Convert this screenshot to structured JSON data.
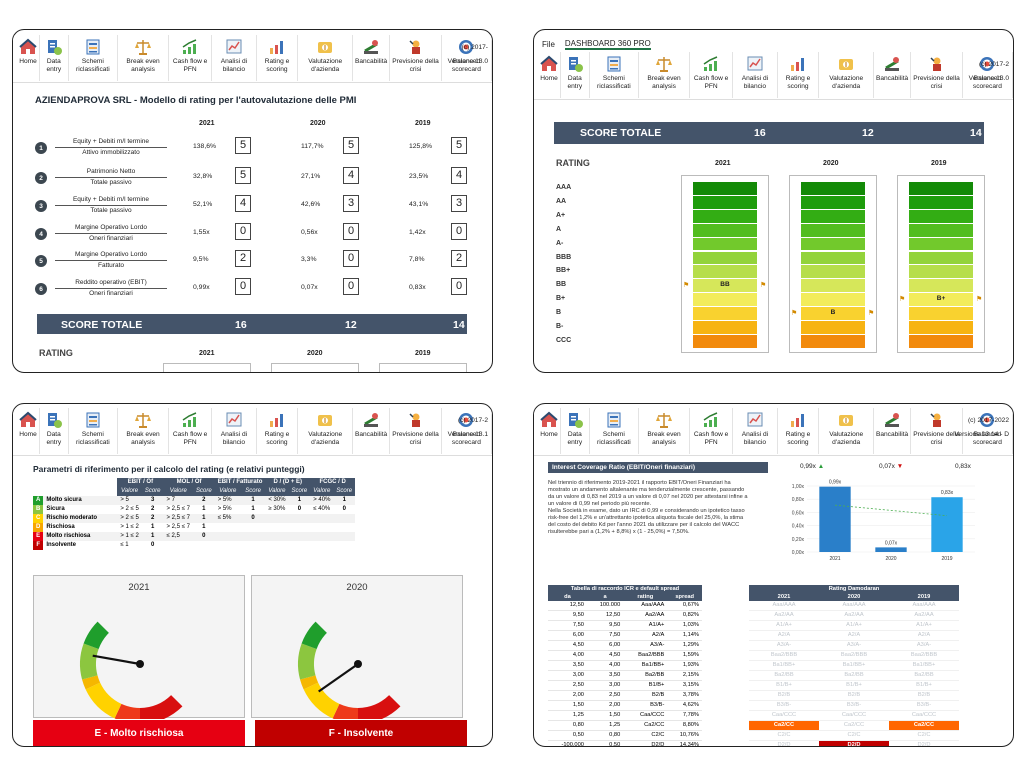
{
  "ribbon": {
    "items": [
      {
        "label": "Home",
        "icon": "home-icon"
      },
      {
        "label": "Data entry",
        "icon": "data-entry-icon"
      },
      {
        "label": "Schemi riclassificati",
        "icon": "sheet-icon"
      },
      {
        "label": "Break even analysis",
        "icon": "balance-icon"
      },
      {
        "label": "Cash flow e PFN",
        "icon": "growth-chart-icon"
      },
      {
        "label": "Analisi di bilancio",
        "icon": "analysis-icon"
      },
      {
        "label": "Rating e scoring",
        "icon": "bar-chart-icon"
      },
      {
        "label": "Valutazione d'azienda",
        "icon": "money-icon"
      },
      {
        "label": "Bancabilità",
        "icon": "bank-icon"
      },
      {
        "label": "Previsione della crisi",
        "icon": "crisis-icon"
      },
      {
        "label": "Balanced scorecard",
        "icon": "scorecard-icon"
      }
    ],
    "copyright_p1": "(c) 2017-",
    "version_p1": "Versione 13.0",
    "copyright_p2": "(c) 2017-2",
    "version_p2": "Versione 13.0",
    "copyright_p3": "(c) 2017-2",
    "version_p3": "Versione 13.1",
    "copyright_p4": "(c) 2017-2022",
    "version_p4": "Versione 13.14 - D"
  },
  "p2menu": {
    "file": "File",
    "tab": "DASHBOARD 360 PRO"
  },
  "p1": {
    "title": "AZIENDAPROVA SRL - Modello di rating per l'autovalutazione delle PMI",
    "years": [
      "2021",
      "2020",
      "2019"
    ],
    "rows": [
      {
        "n": "1",
        "num": "Equity + Debiti m/l termine",
        "den": "Attivo immobilizzato",
        "vals": [
          "138,6%",
          "117,7%",
          "125,8%"
        ],
        "scores": [
          "5",
          "5",
          "5"
        ]
      },
      {
        "n": "2",
        "num": "Patrimonio Netto",
        "den": "Totale passivo",
        "vals": [
          "32,8%",
          "27,1%",
          "23,5%"
        ],
        "scores": [
          "5",
          "4",
          "4"
        ]
      },
      {
        "n": "3",
        "num": "Equity + Debiti m/l termine",
        "den": "Totale passivo",
        "vals": [
          "52,1%",
          "42,6%",
          "43,1%"
        ],
        "scores": [
          "4",
          "3",
          "3"
        ]
      },
      {
        "n": "4",
        "num": "Margine Operativo Lordo",
        "den": "Oneri finanziari",
        "vals": [
          "1,55x",
          "0,56x",
          "1,42x"
        ],
        "scores": [
          "0",
          "0",
          "0"
        ]
      },
      {
        "n": "5",
        "num": "Margine Operativo Lordo",
        "den": "Fatturato",
        "vals": [
          "9,5%",
          "3,3%",
          "7,8%"
        ],
        "scores": [
          "2",
          "0",
          "2"
        ]
      },
      {
        "n": "6",
        "num": "Reddito operativo (EBIT)",
        "den": "Oneri finanziari",
        "vals": [
          "0,99x",
          "0,07x",
          "0,83x"
        ],
        "scores": [
          "0",
          "0",
          "0"
        ]
      }
    ],
    "score_label": "SCORE TOTALE",
    "scores_total": [
      "16",
      "12",
      "14"
    ],
    "rating_label": "RATING"
  },
  "p2": {
    "score_label": "SCORE TOTALE",
    "scores_total": [
      "16",
      "12",
      "14"
    ],
    "rating_label": "RATING",
    "years": [
      "2021",
      "2020",
      "2019"
    ],
    "scale": [
      "AAA",
      "AA",
      "A+",
      "A",
      "A-",
      "BBB",
      "BB+",
      "BB",
      "B+",
      "B",
      "B-",
      "CCC"
    ],
    "selected": [
      "BB",
      "B",
      "B+"
    ]
  },
  "p3": {
    "title": "Parametri di riferimento per il calcolo del rating (e relativi punteggi)",
    "groups": [
      "EBIT / Of",
      "MOL / Of",
      "EBIT / Fatturato",
      "D / (D + E)",
      "FCGC / D"
    ],
    "sub": [
      "Valore",
      "Score"
    ],
    "rows": [
      {
        "k": "A",
        "name": "Molto sicura",
        "c": [
          "> 5",
          "3",
          "> 7",
          "2",
          "> 5%",
          "1",
          "< 30%",
          "1",
          "> 40%",
          "1"
        ]
      },
      {
        "k": "B",
        "name": "Sicura",
        "c": [
          "> 2 ≤ 5",
          "2",
          "> 2,5 ≤ 7",
          "1",
          "> 5%",
          "1",
          "≥ 30%",
          "0",
          "≤ 40%",
          "0"
        ]
      },
      {
        "k": "C",
        "name": "Rischio moderato",
        "c": [
          "> 2 ≤ 5",
          "2",
          "> 2,5 ≤ 7",
          "1",
          "≤ 5%",
          "0",
          "",
          "",
          "",
          ""
        ]
      },
      {
        "k": "D",
        "name": "Rischiosa",
        "c": [
          "> 1 ≤ 2",
          "1",
          "> 2,5 ≤ 7",
          "1",
          "",
          "",
          "",
          "",
          "",
          ""
        ]
      },
      {
        "k": "E",
        "name": "Molto rischiosa",
        "c": [
          "> 1 ≤ 2",
          "1",
          "≤ 2,5",
          "0",
          "",
          "",
          "",
          "",
          "",
          ""
        ]
      },
      {
        "k": "F",
        "name": "Insolvente",
        "c": [
          "≤ 1",
          "0",
          "",
          "",
          "",
          "",
          "",
          "",
          "",
          ""
        ]
      }
    ],
    "gauges": [
      {
        "year": "2021",
        "result": "E - Molto rischiosa"
      },
      {
        "year": "2020",
        "result": "F - Insolvente"
      }
    ]
  },
  "p4": {
    "ic_title": "Interest Coverage Ratio (EBIT/Oneri finanziari)",
    "ic_text": [
      "Nel triennio di riferimento 2019-2021 il rapporto EBIT/Oneri Finanziari ha",
      "mostrato un andamento altalenante ma tendenzialmente crescente, passando",
      "da un valore di 0,83 nel 2019 a un valore di 0,07 nel 2020 per attestarsi infine a",
      "un valore di 0,99 nel periodo più recente.",
      "Nella Società in esame, dato un IRC di 0,99 e considerando un ipotetico tasso",
      "risk-free del 1,2% e un'attrettanto ipotetica aliquota fiscale del 25,0%, la stima",
      "del costo del debito Kd per l'anno 2021 da utilizzare per il calcolo del WACC",
      "risulterebbe pari a (1,2% + 8,8%) x (1 - 25,0%) = 7,50%."
    ],
    "kpi": [
      "0,99x",
      "0,07x",
      "0,83x"
    ],
    "chart_data": {
      "type": "bar",
      "categories": [
        "2021",
        "2020",
        "2019"
      ],
      "values": [
        0.99,
        0.07,
        0.83
      ],
      "labels": [
        "0,99x",
        "0,07x",
        "0,83x"
      ],
      "yticks": [
        "0,00x",
        "0,20x",
        "0,40x",
        "0,60x",
        "0,80x",
        "1,00x"
      ],
      "ylim": [
        0,
        1.0
      ],
      "title": "",
      "xlabel": "",
      "ylabel": "",
      "trendline": true,
      "bar_colors": [
        "#2a7fc9",
        "#2a7fc9",
        "#2aa4e8"
      ]
    },
    "tab_title": "Tabella di raccordo ICR e default spread",
    "tab_head": [
      "da",
      "a",
      "rating",
      "spread"
    ],
    "tab_rows": [
      [
        "12,50",
        "100.000",
        "Aaa/AAA",
        "0,67%"
      ],
      [
        "9,50",
        "12,50",
        "Aa2/AA",
        "0,82%"
      ],
      [
        "7,50",
        "9,50",
        "A1/A+",
        "1,03%"
      ],
      [
        "6,00",
        "7,50",
        "A2/A",
        "1,14%"
      ],
      [
        "4,50",
        "6,00",
        "A3/A-",
        "1,29%"
      ],
      [
        "4,00",
        "4,50",
        "Baa2/BBB",
        "1,59%"
      ],
      [
        "3,50",
        "4,00",
        "Ba1/BB+",
        "1,93%"
      ],
      [
        "3,00",
        "3,50",
        "Ba2/BB",
        "2,15%"
      ],
      [
        "2,50",
        "3,00",
        "B1/B+",
        "3,15%"
      ],
      [
        "2,00",
        "2,50",
        "B2/B",
        "3,78%"
      ],
      [
        "1,50",
        "2,00",
        "B3/B-",
        "4,62%"
      ],
      [
        "1,25",
        "1,50",
        "Caa/CCC",
        "7,78%"
      ],
      [
        "0,80",
        "1,25",
        "Ca2/CC",
        "8,80%"
      ],
      [
        "0,50",
        "0,80",
        "C2/C",
        "10,76%"
      ],
      [
        "-100.000",
        "0,50",
        "D2/D",
        "14,34%"
      ]
    ],
    "dam_title": "Rating Damodaran",
    "dam_years": [
      "2021",
      "2020",
      "2019"
    ],
    "dam_selected": [
      12,
      14,
      12
    ]
  }
}
